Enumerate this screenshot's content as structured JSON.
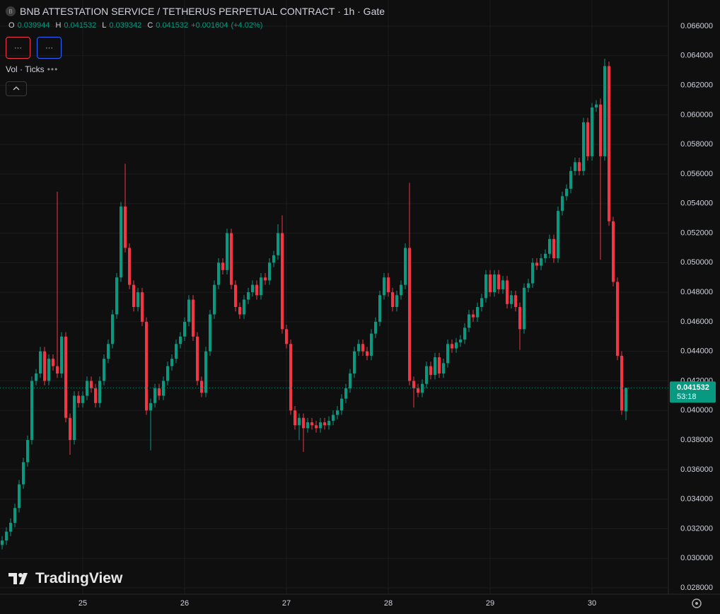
{
  "chart_data": {
    "type": "candlestick",
    "title": "BNB ATTESTATION SERVICE / TETHERUS PERPETUAL CONTRACT · 1h · Gate",
    "symbol_icon": "B",
    "ohlc_header": [
      {
        "label": "O",
        "value": 0.039944
      },
      {
        "label": "H",
        "value": 0.041532
      },
      {
        "label": "L",
        "value": 0.039342
      },
      {
        "label": "C",
        "value": 0.041532
      }
    ],
    "change": "+0.001604",
    "change_pct": "(+4.02%)",
    "indicator": "Vol · Ticks",
    "brand": "TradingView",
    "last_price": 0.041532,
    "countdown": "53:18",
    "up_color": "#089981",
    "down_color": "#f23645",
    "grid": true,
    "xlim": [
      -0.5,
      157
    ],
    "xticks": [
      {
        "value": 19,
        "label": "25"
      },
      {
        "value": 43,
        "label": "26"
      },
      {
        "value": 67,
        "label": "27"
      },
      {
        "value": 91,
        "label": "28"
      },
      {
        "value": 115,
        "label": "29"
      },
      {
        "value": 139,
        "label": "30"
      }
    ],
    "ylim": [
      0.027,
      0.067
    ],
    "yticks": [
      {
        "value": 0.028,
        "label": "0.028000"
      },
      {
        "value": 0.03,
        "label": "0.030000"
      },
      {
        "value": 0.032,
        "label": "0.032000"
      },
      {
        "value": 0.034,
        "label": "0.034000"
      },
      {
        "value": 0.036,
        "label": "0.036000"
      },
      {
        "value": 0.038,
        "label": "0.038000"
      },
      {
        "value": 0.04,
        "label": "0.040000"
      },
      {
        "value": 0.042,
        "label": "0.042000"
      },
      {
        "value": 0.044,
        "label": "0.044000"
      },
      {
        "value": 0.046,
        "label": "0.046000"
      },
      {
        "value": 0.048,
        "label": "0.048000"
      },
      {
        "value": 0.05,
        "label": "0.050000"
      },
      {
        "value": 0.052,
        "label": "0.052000"
      },
      {
        "value": 0.054,
        "label": "0.054000"
      },
      {
        "value": 0.056,
        "label": "0.056000"
      },
      {
        "value": 0.058,
        "label": "0.058000"
      },
      {
        "value": 0.06,
        "label": "0.060000"
      },
      {
        "value": 0.062,
        "label": "0.062000"
      },
      {
        "value": 0.064,
        "label": "0.064000"
      },
      {
        "value": 0.066,
        "label": "0.066000"
      }
    ],
    "open": [
      0.0309,
      0.0312,
      0.0318,
      0.0324,
      0.0334,
      0.035,
      0.0365,
      0.038,
      0.042,
      0.0425,
      0.044,
      0.042,
      0.0435,
      0.043,
      0.0425,
      0.045,
      0.0395,
      0.038,
      0.041,
      0.0405,
      0.041,
      0.042,
      0.0415,
      0.0405,
      0.042,
      0.0435,
      0.0445,
      0.0465,
      0.049,
      0.0538,
      0.051,
      0.0485,
      0.047,
      0.048,
      0.046,
      0.04,
      0.0405,
      0.0415,
      0.041,
      0.042,
      0.043,
      0.0435,
      0.0445,
      0.045,
      0.046,
      0.0475,
      0.045,
      0.042,
      0.0412,
      0.044,
      0.0465,
      0.0485,
      0.05,
      0.0495,
      0.052,
      0.0485,
      0.047,
      0.0465,
      0.0475,
      0.048,
      0.0485,
      0.0478,
      0.049,
      0.0488,
      0.05,
      0.0505,
      0.052,
      0.0455,
      0.0445,
      0.04,
      0.039,
      0.0395,
      0.0388,
      0.0392,
      0.039,
      0.0388,
      0.0392,
      0.039,
      0.0393,
      0.0397,
      0.04,
      0.0408,
      0.0415,
      0.0425,
      0.044,
      0.0445,
      0.044,
      0.0437,
      0.0452,
      0.046,
      0.0478,
      0.049,
      0.048,
      0.047,
      0.0478,
      0.0485,
      0.051,
      0.042,
      0.0415,
      0.0412,
      0.0418,
      0.043,
      0.0424,
      0.0436,
      0.0425,
      0.0432,
      0.0445,
      0.0442,
      0.0446,
      0.0448,
      0.0456,
      0.0465,
      0.0463,
      0.047,
      0.0476,
      0.0492,
      0.048,
      0.0492,
      0.0482,
      0.0488,
      0.0472,
      0.0478,
      0.047,
      0.0455,
      0.0483,
      0.0486,
      0.05,
      0.0498,
      0.0503,
      0.0506,
      0.0516,
      0.0503,
      0.0535,
      0.0545,
      0.055,
      0.0562,
      0.0568,
      0.0562,
      0.0595,
      0.0572,
      0.0605,
      0.0607,
      0.0572,
      0.0633,
      0.0528,
      0.0487,
      0.0437,
      0.039944
    ],
    "high": [
      0.0315,
      0.0321,
      0.0327,
      0.0337,
      0.0353,
      0.0368,
      0.0383,
      0.0423,
      0.0428,
      0.0443,
      0.0443,
      0.0438,
      0.0438,
      0.0548,
      0.0453,
      0.0453,
      0.0398,
      0.0413,
      0.0413,
      0.0413,
      0.0423,
      0.0423,
      0.0418,
      0.0423,
      0.0438,
      0.0448,
      0.0468,
      0.0493,
      0.0541,
      0.0567,
      0.0513,
      0.0488,
      0.0483,
      0.0483,
      0.0463,
      0.0408,
      0.0418,
      0.0418,
      0.0423,
      0.0433,
      0.0438,
      0.0448,
      0.0453,
      0.0463,
      0.0478,
      0.0478,
      0.0453,
      0.0423,
      0.0443,
      0.0468,
      0.0488,
      0.0503,
      0.0503,
      0.0523,
      0.0523,
      0.0488,
      0.0473,
      0.0478,
      0.0483,
      0.0488,
      0.0488,
      0.0493,
      0.0493,
      0.0503,
      0.0508,
      0.0526,
      0.0532,
      0.0458,
      0.0448,
      0.0403,
      0.0398,
      0.0398,
      0.0395,
      0.0395,
      0.0393,
      0.0395,
      0.0395,
      0.0396,
      0.04,
      0.0403,
      0.0411,
      0.0418,
      0.0428,
      0.0443,
      0.0448,
      0.0448,
      0.0443,
      0.0455,
      0.0463,
      0.0481,
      0.0493,
      0.0493,
      0.0483,
      0.0481,
      0.0488,
      0.0513,
      0.0554,
      0.0423,
      0.0418,
      0.0421,
      0.0433,
      0.0433,
      0.0439,
      0.0439,
      0.0435,
      0.0448,
      0.0448,
      0.0449,
      0.0451,
      0.0459,
      0.0468,
      0.0468,
      0.0473,
      0.0479,
      0.0495,
      0.0495,
      0.0495,
      0.0495,
      0.0491,
      0.0491,
      0.0481,
      0.0481,
      0.0473,
      0.0486,
      0.0489,
      0.0503,
      0.0503,
      0.0506,
      0.0509,
      0.0519,
      0.0519,
      0.0538,
      0.0548,
      0.0553,
      0.0565,
      0.0571,
      0.0571,
      0.0598,
      0.0598,
      0.0608,
      0.061,
      0.0611,
      0.0638,
      0.0636,
      0.0531,
      0.049,
      0.044,
      0.041532
    ],
    "low": [
      0.0306,
      0.0309,
      0.0315,
      0.0321,
      0.0331,
      0.0347,
      0.0362,
      0.0377,
      0.0417,
      0.0422,
      0.0417,
      0.0417,
      0.0427,
      0.0422,
      0.0422,
      0.0392,
      0.037,
      0.0377,
      0.0402,
      0.0402,
      0.0407,
      0.0412,
      0.0402,
      0.0402,
      0.0417,
      0.0432,
      0.0442,
      0.0462,
      0.0487,
      0.0507,
      0.0482,
      0.0467,
      0.0467,
      0.0457,
      0.0397,
      0.0373,
      0.0402,
      0.0407,
      0.0407,
      0.0417,
      0.0427,
      0.0432,
      0.0442,
      0.0447,
      0.0457,
      0.0447,
      0.0417,
      0.0409,
      0.0409,
      0.0437,
      0.0462,
      0.0482,
      0.0492,
      0.0492,
      0.0482,
      0.0467,
      0.0462,
      0.0462,
      0.0472,
      0.0477,
      0.0475,
      0.0475,
      0.0485,
      0.0485,
      0.0497,
      0.0502,
      0.0452,
      0.0442,
      0.0397,
      0.0387,
      0.038,
      0.0372,
      0.0385,
      0.0387,
      0.0385,
      0.0385,
      0.0387,
      0.0387,
      0.039,
      0.0394,
      0.0397,
      0.0405,
      0.0412,
      0.0422,
      0.0437,
      0.0437,
      0.0434,
      0.0434,
      0.0449,
      0.0457,
      0.0475,
      0.0477,
      0.0467,
      0.0467,
      0.0475,
      0.0482,
      0.0417,
      0.0402,
      0.0409,
      0.0409,
      0.0415,
      0.0421,
      0.0421,
      0.0422,
      0.0422,
      0.0429,
      0.0439,
      0.0439,
      0.0443,
      0.0445,
      0.0453,
      0.046,
      0.046,
      0.0467,
      0.0473,
      0.0477,
      0.0477,
      0.0479,
      0.0479,
      0.0469,
      0.0469,
      0.0467,
      0.0441,
      0.0452,
      0.048,
      0.0483,
      0.0495,
      0.0495,
      0.05,
      0.0503,
      0.05,
      0.05,
      0.0532,
      0.0542,
      0.0547,
      0.0559,
      0.0559,
      0.0559,
      0.0569,
      0.0569,
      0.0602,
      0.0502,
      0.0569,
      0.0525,
      0.0484,
      0.0434,
      0.0397,
      0.039342
    ],
    "close": [
      0.0312,
      0.0318,
      0.0324,
      0.0334,
      0.035,
      0.0365,
      0.038,
      0.042,
      0.0425,
      0.044,
      0.042,
      0.0435,
      0.043,
      0.0425,
      0.045,
      0.0395,
      0.038,
      0.041,
      0.0405,
      0.041,
      0.042,
      0.0415,
      0.0405,
      0.042,
      0.0435,
      0.0445,
      0.0465,
      0.049,
      0.0538,
      0.051,
      0.0485,
      0.047,
      0.048,
      0.046,
      0.04,
      0.0405,
      0.0415,
      0.041,
      0.042,
      0.043,
      0.0435,
      0.0445,
      0.045,
      0.046,
      0.0475,
      0.045,
      0.042,
      0.0412,
      0.044,
      0.0465,
      0.0485,
      0.05,
      0.0495,
      0.052,
      0.0485,
      0.047,
      0.0465,
      0.0475,
      0.048,
      0.0485,
      0.0478,
      0.049,
      0.0488,
      0.05,
      0.0505,
      0.052,
      0.0455,
      0.0445,
      0.04,
      0.039,
      0.0395,
      0.0388,
      0.0392,
      0.039,
      0.0388,
      0.0392,
      0.039,
      0.0393,
      0.0397,
      0.04,
      0.0408,
      0.0415,
      0.0425,
      0.044,
      0.0445,
      0.044,
      0.0437,
      0.0452,
      0.046,
      0.0478,
      0.049,
      0.048,
      0.047,
      0.0478,
      0.0485,
      0.051,
      0.042,
      0.0415,
      0.0412,
      0.0418,
      0.043,
      0.0424,
      0.0436,
      0.0425,
      0.0432,
      0.0445,
      0.0442,
      0.0446,
      0.0448,
      0.0456,
      0.0465,
      0.0463,
      0.047,
      0.0476,
      0.0492,
      0.048,
      0.0492,
      0.0482,
      0.0488,
      0.0472,
      0.0478,
      0.047,
      0.0455,
      0.0483,
      0.0486,
      0.05,
      0.0498,
      0.0503,
      0.0506,
      0.0516,
      0.0503,
      0.0535,
      0.0545,
      0.055,
      0.0562,
      0.0568,
      0.0562,
      0.0595,
      0.0572,
      0.0605,
      0.0607,
      0.0572,
      0.0633,
      0.0528,
      0.0487,
      0.0437,
      0.04,
      0.041532
    ]
  }
}
